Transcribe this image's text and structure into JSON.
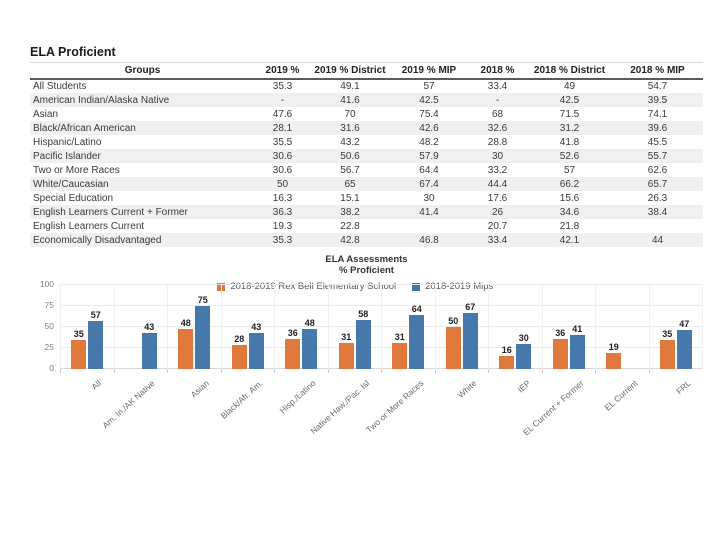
{
  "page": {
    "title": "ELA Proficient"
  },
  "table": {
    "columns": [
      "Groups",
      "2019 %",
      "2019 % District",
      "2019 % MIP",
      "2018 %",
      "2018 % District",
      "2018 % MIP"
    ],
    "rows": [
      [
        "All Students",
        "35.3",
        "49.1",
        "57",
        "33.4",
        "49",
        "54.7"
      ],
      [
        "American Indian/Alaska Native",
        "-",
        "41.6",
        "42.5",
        "-",
        "42.5",
        "39.5"
      ],
      [
        "Asian",
        "47.6",
        "70",
        "75.4",
        "68",
        "71.5",
        "74.1"
      ],
      [
        "Black/African American",
        "28.1",
        "31.6",
        "42.6",
        "32.6",
        "31.2",
        "39.6"
      ],
      [
        "Hispanic/Latino",
        "35.5",
        "43.2",
        "48.2",
        "28.8",
        "41.8",
        "45.5"
      ],
      [
        "Pacific Islander",
        "30.6",
        "50.6",
        "57.9",
        "30",
        "52.6",
        "55.7"
      ],
      [
        "Two or More Races",
        "30.6",
        "56.7",
        "64.4",
        "33.2",
        "57",
        "62.6"
      ],
      [
        "White/Caucasian",
        "50",
        "65",
        "67.4",
        "44.4",
        "66.2",
        "65.7"
      ],
      [
        "Special Education",
        "16.3",
        "15.1",
        "30",
        "17.6",
        "15.6",
        "26.3"
      ],
      [
        "English Learners Current + Former",
        "36.3",
        "38.2",
        "41.4",
        "26",
        "34.6",
        "38.4"
      ],
      [
        "English Learners Current",
        "19.3",
        "22.8",
        "",
        "20.7",
        "21.8",
        ""
      ],
      [
        "Economically Disadvantaged",
        "35.3",
        "42.8",
        "46.8",
        "33.4",
        "42.1",
        "44"
      ]
    ]
  },
  "chart_data": {
    "type": "bar",
    "title": "ELA Assessments",
    "subtitle": "% Proficient",
    "categories": [
      "All",
      "Am. In./AK Native",
      "Asian",
      "Black/Afr. Am.",
      "Hisp./Latino",
      "Native Haw./Pac. Isl",
      "Two or More Races",
      "White",
      "IEP",
      "EL Current + Former",
      "EL Current",
      "FRL"
    ],
    "series": [
      {
        "name": "2018-2019 Rex Bell Elementary School",
        "color": "#E0793B",
        "values": [
          35,
          null,
          48,
          28,
          36,
          31,
          31,
          50,
          16,
          36,
          19,
          35
        ]
      },
      {
        "name": "2018-2019 Mips",
        "color": "#4678AC",
        "values": [
          57,
          43,
          75,
          43,
          48,
          58,
          64,
          67,
          30,
          41,
          null,
          47
        ]
      }
    ],
    "ylim": [
      0,
      100
    ],
    "yticks": [
      0,
      25,
      50,
      75,
      100
    ],
    "grid": true,
    "legend_position": "top-center-inside"
  },
  "colors": {
    "school_series": "#E0793B",
    "district_mips_series": "#4678AC",
    "table_stripe": "#F0F0F0"
  }
}
